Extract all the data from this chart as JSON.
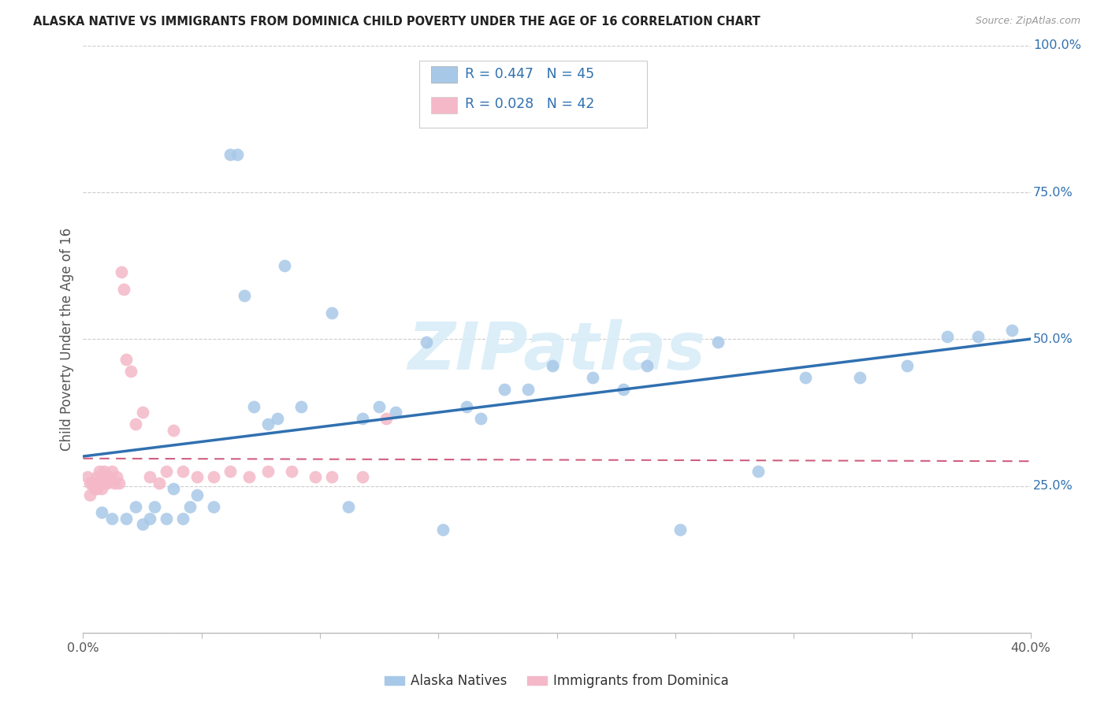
{
  "title": "ALASKA NATIVE VS IMMIGRANTS FROM DOMINICA CHILD POVERTY UNDER THE AGE OF 16 CORRELATION CHART",
  "source": "Source: ZipAtlas.com",
  "ylabel": "Child Poverty Under the Age of 16",
  "xlim": [
    0.0,
    0.4
  ],
  "ylim": [
    0.0,
    1.0
  ],
  "yticks": [
    0.0,
    0.25,
    0.5,
    0.75,
    1.0
  ],
  "ytick_labels": [
    "",
    "25.0%",
    "50.0%",
    "75.0%",
    "100.0%"
  ],
  "xticks": [
    0.0,
    0.05,
    0.1,
    0.15,
    0.2,
    0.25,
    0.3,
    0.35,
    0.4
  ],
  "xtick_labels": [
    "0.0%",
    "",
    "",
    "",
    "",
    "",
    "",
    "",
    "40.0%"
  ],
  "blue_R": 0.447,
  "blue_N": 45,
  "pink_R": 0.028,
  "pink_N": 42,
  "blue_color": "#a8c8e8",
  "pink_color": "#f4b8c8",
  "blue_line_color": "#3070b0",
  "pink_line_color": "#d06080",
  "bg_color": "#ffffff",
  "grid_color": "#cccccc",
  "watermark_text": "ZIPatlas",
  "title_color": "#222222",
  "legend_text_color": "#3070b0",
  "blue_scatter_x": [
    0.008,
    0.012,
    0.018,
    0.022,
    0.025,
    0.028,
    0.03,
    0.035,
    0.038,
    0.042,
    0.045,
    0.048,
    0.055,
    0.062,
    0.065,
    0.068,
    0.072,
    0.078,
    0.082,
    0.085,
    0.092,
    0.105,
    0.112,
    0.118,
    0.125,
    0.132,
    0.145,
    0.152,
    0.162,
    0.168,
    0.178,
    0.188,
    0.198,
    0.215,
    0.228,
    0.238,
    0.252,
    0.268,
    0.285,
    0.305,
    0.328,
    0.348,
    0.365,
    0.378,
    0.392
  ],
  "blue_scatter_y": [
    0.205,
    0.195,
    0.195,
    0.215,
    0.185,
    0.195,
    0.215,
    0.195,
    0.245,
    0.195,
    0.215,
    0.235,
    0.215,
    0.815,
    0.815,
    0.575,
    0.385,
    0.355,
    0.365,
    0.625,
    0.385,
    0.545,
    0.215,
    0.365,
    0.385,
    0.375,
    0.495,
    0.175,
    0.385,
    0.365,
    0.415,
    0.415,
    0.455,
    0.435,
    0.415,
    0.455,
    0.175,
    0.495,
    0.275,
    0.435,
    0.435,
    0.455,
    0.505,
    0.505,
    0.515
  ],
  "pink_scatter_x": [
    0.002,
    0.003,
    0.003,
    0.004,
    0.005,
    0.005,
    0.006,
    0.006,
    0.007,
    0.007,
    0.008,
    0.008,
    0.009,
    0.009,
    0.01,
    0.01,
    0.011,
    0.012,
    0.013,
    0.014,
    0.015,
    0.016,
    0.017,
    0.018,
    0.02,
    0.022,
    0.025,
    0.028,
    0.032,
    0.035,
    0.038,
    0.042,
    0.048,
    0.055,
    0.062,
    0.07,
    0.078,
    0.088,
    0.098,
    0.105,
    0.118,
    0.128
  ],
  "pink_scatter_y": [
    0.265,
    0.255,
    0.235,
    0.255,
    0.255,
    0.245,
    0.245,
    0.265,
    0.255,
    0.275,
    0.255,
    0.245,
    0.275,
    0.255,
    0.255,
    0.265,
    0.265,
    0.275,
    0.255,
    0.265,
    0.255,
    0.615,
    0.585,
    0.465,
    0.445,
    0.355,
    0.375,
    0.265,
    0.255,
    0.275,
    0.345,
    0.275,
    0.265,
    0.265,
    0.275,
    0.265,
    0.275,
    0.275,
    0.265,
    0.265,
    0.265,
    0.365
  ]
}
